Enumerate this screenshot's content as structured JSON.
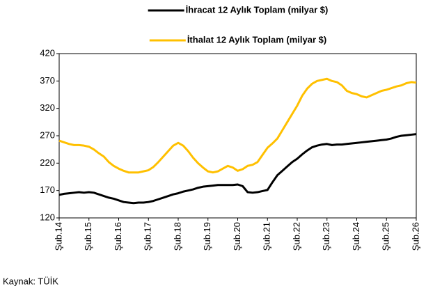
{
  "chart_data": {
    "type": "line",
    "categories": [
      "Şub.14",
      null,
      null,
      null,
      null,
      null,
      "Şub.15",
      null,
      null,
      null,
      null,
      null,
      "Şub.16",
      null,
      null,
      null,
      null,
      null,
      "Şub.17",
      null,
      null,
      null,
      null,
      null,
      "Şub.18",
      null,
      null,
      null,
      null,
      null,
      "Şub.19",
      null,
      null,
      null,
      null,
      null,
      "Şub.20",
      null,
      null,
      null,
      null,
      null,
      "Şub.21",
      null,
      null,
      null,
      null,
      null,
      "Şub.22",
      null,
      null,
      null,
      null,
      null,
      "Şub.23",
      null,
      null,
      null,
      null,
      null,
      "Şub.24",
      null,
      null,
      null,
      null,
      null,
      "Şub.25",
      null,
      null,
      null,
      null,
      null,
      "Şub.26"
    ],
    "series": [
      {
        "name": "İhracat 12 Aylık Toplam (milyar $)",
        "color": "#000000",
        "values": [
          162,
          164,
          165,
          166,
          167,
          166,
          167,
          166,
          163,
          160,
          157,
          155,
          152,
          149,
          148,
          147,
          148,
          148,
          149,
          151,
          154,
          157,
          160,
          163,
          165,
          168,
          170,
          172,
          175,
          177,
          178,
          179,
          180,
          180,
          180,
          180,
          181,
          178,
          167,
          166,
          167,
          169,
          171,
          185,
          198,
          206,
          214,
          222,
          228,
          236,
          243,
          249,
          252,
          254,
          255,
          253,
          254,
          254,
          255,
          256,
          257,
          258,
          259,
          260,
          261,
          262,
          263,
          265,
          268,
          270,
          271,
          272,
          273
        ]
      },
      {
        "name": "İthalat 12 Aylık Toplam (milyar $)",
        "color": "#ffc000",
        "values": [
          261,
          258,
          255,
          253,
          253,
          252,
          250,
          245,
          238,
          232,
          222,
          215,
          210,
          206,
          203,
          203,
          203,
          205,
          207,
          213,
          222,
          232,
          242,
          252,
          257,
          252,
          242,
          230,
          220,
          212,
          205,
          203,
          205,
          210,
          215,
          212,
          206,
          209,
          215,
          217,
          222,
          235,
          248,
          256,
          265,
          280,
          295,
          310,
          325,
          343,
          356,
          365,
          370,
          372,
          374,
          370,
          368,
          362,
          352,
          348,
          346,
          342,
          340,
          344,
          348,
          352,
          354,
          357,
          360,
          362,
          366,
          368,
          367
        ]
      }
    ],
    "ylim": [
      120,
      420
    ],
    "yticks": [
      120,
      170,
      220,
      270,
      320,
      370,
      420
    ],
    "grid": false,
    "legend": "top",
    "source": "Kaynak: TÜİK"
  }
}
